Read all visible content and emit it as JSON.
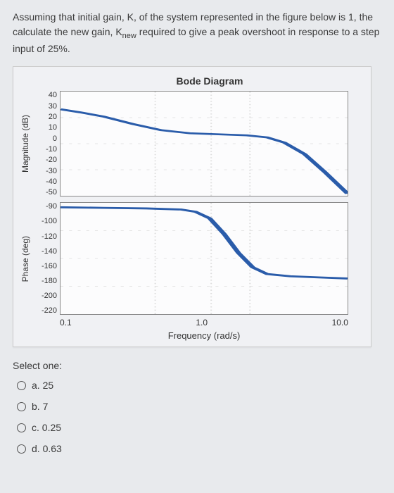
{
  "question": {
    "text_pre": "Assuming that initial gain, K, of the system represented in the figure below is 1, the calculate the new gain, K",
    "sub": "new",
    "text_post": " required to give a peak overshoot in response to a step input of 25%."
  },
  "chart": {
    "title": "Bode Diagram",
    "xlabel": "Frequency (rad/s)",
    "xticks": [
      "0.1",
      "1.0",
      "10.0"
    ],
    "magnitude": {
      "ylabel": "Magnitude (dB)",
      "yticks": [
        "40",
        "30",
        "20",
        "10",
        "0",
        "-10",
        "-20",
        "-30",
        "-40",
        "-50"
      ],
      "ylim": [
        -55,
        45
      ],
      "curve_color": "#2a5caa",
      "background": "#fcfcfd",
      "points": [
        [
          0.0,
          0.17
        ],
        [
          0.07,
          0.2
        ],
        [
          0.15,
          0.24
        ],
        [
          0.25,
          0.31
        ],
        [
          0.35,
          0.37
        ],
        [
          0.45,
          0.4
        ],
        [
          0.55,
          0.41
        ],
        [
          0.65,
          0.42
        ],
        [
          0.72,
          0.44
        ],
        [
          0.78,
          0.49
        ],
        [
          0.85,
          0.6
        ],
        [
          0.92,
          0.77
        ],
        [
          1.0,
          0.98
        ]
      ]
    },
    "phase": {
      "ylabel": "Phase (deg)",
      "yticks": [
        "-90",
        "-100",
        "-120",
        "-140",
        "-160",
        "-180",
        "-200",
        "-220"
      ],
      "ylim": [
        -225,
        -85
      ],
      "curve_color": "#2a5caa",
      "background": "#fcfcfd",
      "points": [
        [
          0.0,
          0.04
        ],
        [
          0.15,
          0.045
        ],
        [
          0.3,
          0.05
        ],
        [
          0.42,
          0.06
        ],
        [
          0.47,
          0.08
        ],
        [
          0.52,
          0.14
        ],
        [
          0.57,
          0.28
        ],
        [
          0.62,
          0.45
        ],
        [
          0.67,
          0.58
        ],
        [
          0.72,
          0.64
        ],
        [
          0.8,
          0.66
        ],
        [
          0.9,
          0.67
        ],
        [
          1.0,
          0.68
        ]
      ]
    }
  },
  "select_label": "Select one:",
  "options": [
    {
      "key": "a",
      "text": "a. 25"
    },
    {
      "key": "b",
      "text": "b. 7"
    },
    {
      "key": "c",
      "text": "c. 0.25"
    },
    {
      "key": "d",
      "text": "d. 0.63"
    }
  ]
}
